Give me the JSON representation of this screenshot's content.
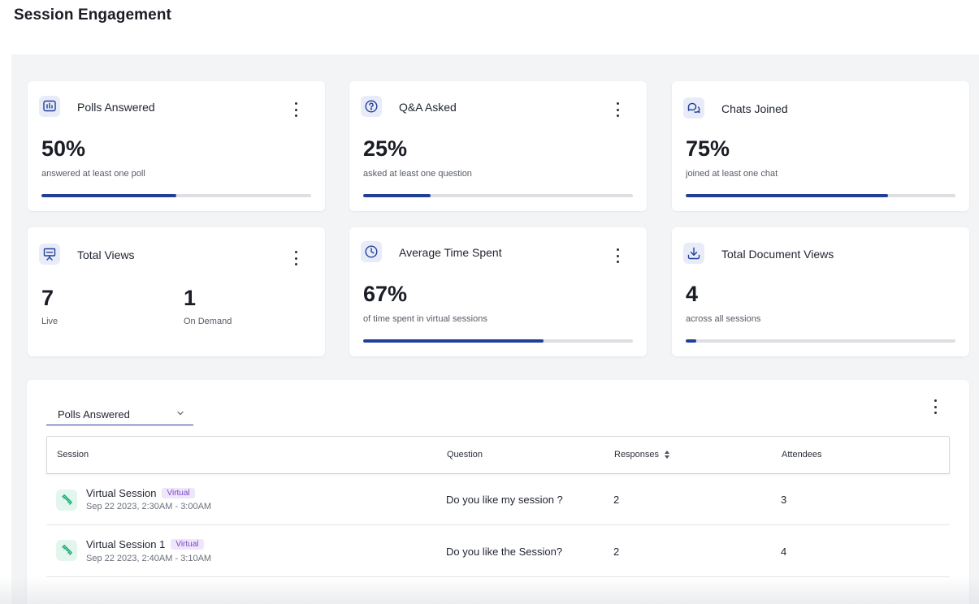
{
  "page": {
    "title": "Session Engagement"
  },
  "cards": {
    "polls": {
      "title": "Polls Answered",
      "value": "50%",
      "sublabel": "answered at least one poll",
      "progress": 0.5,
      "icon": "poll-chart-icon"
    },
    "qa": {
      "title": "Q&A Asked",
      "value": "25%",
      "sublabel": "asked at least one question",
      "progress": 0.25,
      "icon": "question-circle-icon"
    },
    "chats": {
      "title": "Chats Joined",
      "value": "75%",
      "sublabel": "joined at least one chat",
      "progress": 0.75,
      "icon": "chat-bubbles-icon"
    },
    "views": {
      "title": "Total Views",
      "live_value": "7",
      "live_label": "Live",
      "ondemand_value": "1",
      "ondemand_label": "On Demand",
      "icon": "presentation-board-icon"
    },
    "time": {
      "title": "Average Time Spent",
      "value": "67%",
      "sublabel": "of time spent in virtual sessions",
      "progress": 0.67,
      "icon": "clock-icon"
    },
    "docs": {
      "title": "Total Document Views",
      "value": "4",
      "sublabel": "across all sessions",
      "progress": 0.04,
      "icon": "download-icon"
    }
  },
  "table": {
    "select_value": "Polls Answered",
    "columns": {
      "session": "Session",
      "question": "Question",
      "responses": "Responses",
      "attendees": "Attendees"
    },
    "rows": [
      {
        "name": "Virtual Session",
        "badge": "Virtual",
        "time": "Sep 22 2023, 2:30AM - 3:00AM",
        "question": "Do you like my session ?",
        "responses": "2",
        "attendees": "3"
      },
      {
        "name": "Virtual Session 1",
        "badge": "Virtual",
        "time": "Sep 22 2023, 2:40AM - 3:10AM",
        "question": "Do you like the Session?",
        "responses": "2",
        "attendees": "4"
      }
    ]
  },
  "colors": {
    "accent": "#213f99",
    "track": "#dddfe3",
    "icon_bg": "#e8ecf8",
    "session_icon_bg": "#e3f6ee",
    "session_icon": "#1fae7a",
    "badge_text": "#7a49c6",
    "badge_bg": "#efe6fb"
  }
}
